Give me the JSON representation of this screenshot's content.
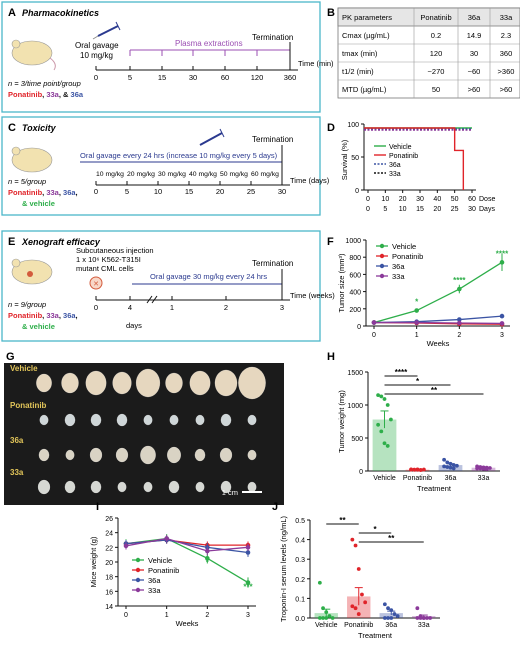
{
  "colors": {
    "box_border": "#4bb6c9",
    "vehicle": "#2eae4a",
    "ponatinib": "#e0242a",
    "c36a": "#3b54a4",
    "c33a": "#8b3a9a",
    "mouse": "#f2e2b0",
    "purple_line": "#9b4fb3",
    "navy_line": "#2b3a8f",
    "pill": "#e63a8c"
  },
  "panelA": {
    "letter": "A",
    "title": "Pharmacokinetics",
    "gavage": "Oral gavage",
    "dose": "10 mg/kg",
    "plasma": "Plasma extractions",
    "termination": "Termination",
    "axis_label": "Time (min)",
    "ticks": [
      "0",
      "5",
      "15",
      "30",
      "60",
      "120",
      "360"
    ],
    "n_text": "n = 3/time point/group",
    "groups": [
      {
        "text": "Ponatinib",
        "color": "#e0242a"
      },
      {
        "text": ", ",
        "color": "#111"
      },
      {
        "text": "33a",
        "color": "#8b3a9a"
      },
      {
        "text": ", & ",
        "color": "#111"
      },
      {
        "text": "36a",
        "color": "#3b54a4"
      }
    ]
  },
  "panelB": {
    "letter": "B",
    "headers": [
      "PK parameters",
      "Ponatinib",
      "36a",
      "33a"
    ],
    "rows": [
      [
        "Cmax (µg/mL)",
        "0.2",
        "14.9",
        "2.3"
      ],
      [
        "tmax (min)",
        "120",
        "30",
        "360"
      ],
      [
        "t1/2 (min)",
        "~270",
        "~60",
        ">360"
      ],
      [
        "MTD (µg/mL)",
        "50",
        ">60",
        ">60"
      ]
    ]
  },
  "panelC": {
    "letter": "C",
    "title": "Toxicity",
    "gavage": "Oral gavage every 24 hrs (increase 10 mg/kg every 5 days)",
    "termination": "Termination",
    "axis_label": "Time (days)",
    "doses": [
      "10 mg/kg",
      "20 mg/kg",
      "30 mg/kg",
      "40 mg/kg",
      "50 mg/kg",
      "60 mg/kg"
    ],
    "ticks": [
      "0",
      "5",
      "10",
      "15",
      "20",
      "25",
      "30"
    ],
    "n_text": "n = 5/group",
    "groups": [
      {
        "text": "Ponatinib",
        "color": "#e0242a"
      },
      {
        "text": ", ",
        "color": "#111"
      },
      {
        "text": "33a",
        "color": "#8b3a9a"
      },
      {
        "text": ", ",
        "color": "#111"
      },
      {
        "text": "36a",
        "color": "#3b54a4"
      },
      {
        "text": ",",
        "color": "#111"
      }
    ],
    "vehicle": "& vehicle"
  },
  "panelD": {
    "letter": "D",
    "ylabel": "Survival (%)",
    "yticks": [
      "0",
      "50",
      "100"
    ],
    "dose_label": "Dose",
    "days_label": "Days",
    "dose_ticks": [
      "0",
      "10",
      "20",
      "30",
      "40",
      "50",
      "60"
    ],
    "day_ticks": [
      "0",
      "5",
      "10",
      "15",
      "20",
      "25",
      "30"
    ],
    "legend": [
      {
        "name": "Vehicle",
        "color": "#2eae4a",
        "dash": false
      },
      {
        "name": "Ponatinib",
        "color": "#e0242a",
        "dash": false
      },
      {
        "name": "36a",
        "color": "#3b54a4",
        "dash": true
      },
      {
        "name": "33a",
        "color": "#111",
        "dash": true
      }
    ]
  },
  "panelE": {
    "letter": "E",
    "title": "Xenograft efficacy",
    "injection": "Subcutaneous injection",
    "cells1": "1 x 10⁶ K562-T315I",
    "cells2": "mutant CML cells",
    "gavage": "Oral gavage 30 mg/kg every 24 hrs",
    "termination": "Termination",
    "axis_label": "Time (weeks)",
    "days_label": "days",
    "ticks": [
      "0",
      "4",
      "1",
      "2",
      "3"
    ],
    "n_text": "n = 9/group",
    "groups": [
      {
        "text": "Ponatinib",
        "color": "#e0242a"
      },
      {
        "text": ", ",
        "color": "#111"
      },
      {
        "text": "33a",
        "color": "#8b3a9a"
      },
      {
        "text": ", ",
        "color": "#111"
      },
      {
        "text": "36a",
        "color": "#3b54a4"
      },
      {
        "text": ",",
        "color": "#111"
      }
    ],
    "vehicle": "& vehicle"
  },
  "panelF": {
    "letter": "F",
    "chart_data": {
      "type": "line",
      "xlabel": "Weeks",
      "ylabel": "Tumor size (mm³)",
      "x": [
        0,
        1,
        2,
        3
      ],
      "ylim": [
        0,
        1000
      ],
      "yticks": [
        0,
        200,
        400,
        600,
        800,
        1000
      ],
      "series": [
        {
          "name": "Vehicle",
          "color": "#2eae4a",
          "values": [
            40,
            180,
            430,
            740
          ],
          "err": [
            5,
            20,
            50,
            100
          ]
        },
        {
          "name": "Ponatinib",
          "color": "#e0242a",
          "values": [
            40,
            35,
            25,
            20
          ],
          "err": [
            5,
            5,
            5,
            5
          ]
        },
        {
          "name": "36a",
          "color": "#3b54a4",
          "values": [
            40,
            50,
            75,
            115
          ],
          "err": [
            5,
            8,
            12,
            25
          ]
        },
        {
          "name": "33a",
          "color": "#8b3a9a",
          "values": [
            40,
            40,
            35,
            30
          ],
          "err": [
            5,
            5,
            5,
            5
          ]
        }
      ],
      "annotations": [
        {
          "x": 1,
          "y": 180,
          "text": "*"
        },
        {
          "x": 2,
          "y": 430,
          "text": "****"
        },
        {
          "x": 3,
          "y": 740,
          "text": "****"
        }
      ]
    }
  },
  "panelG": {
    "letter": "G",
    "rows": [
      {
        "label": "Vehicle",
        "count": 9
      },
      {
        "label": "Ponatinib",
        "count": 9
      },
      {
        "label": "36a",
        "count": 9
      },
      {
        "label": "33a",
        "count": 9
      }
    ],
    "scale": "1 cm"
  },
  "panelH": {
    "letter": "H",
    "chart_data": {
      "type": "bar",
      "xlabel": "Treatment",
      "ylabel": "Tumor weight (mg)",
      "categories": [
        "Vehicle",
        "Ponatinib",
        "36a",
        "33a"
      ],
      "values": [
        780,
        20,
        90,
        50
      ],
      "err": [
        130,
        5,
        20,
        10
      ],
      "colors": [
        "#2eae4a",
        "#e0242a",
        "#3b54a4",
        "#8b3a9a"
      ],
      "ylim": [
        0,
        1500
      ],
      "yticks": [
        0,
        500,
        1000,
        1500
      ],
      "points": [
        [
          1150,
          1130,
          1090,
          1000,
          780,
          700,
          600,
          420,
          380
        ],
        [
          25,
          20,
          18,
          15,
          22,
          20,
          18,
          25,
          15
        ],
        [
          170,
          130,
          110,
          90,
          80,
          70,
          60,
          50,
          40
        ],
        [
          70,
          60,
          55,
          50,
          45,
          40,
          40,
          35,
          30
        ]
      ],
      "sig": [
        {
          "from": 0,
          "to": 1,
          "text": "****"
        },
        {
          "from": 0,
          "to": 2,
          "text": "*"
        },
        {
          "from": 0,
          "to": 3,
          "text": "**"
        }
      ]
    }
  },
  "panelI": {
    "letter": "I",
    "chart_data": {
      "type": "line",
      "xlabel": "Weeks",
      "ylabel": "Mice weight (g)",
      "x": [
        0,
        1,
        2,
        3
      ],
      "ylim": [
        14,
        26
      ],
      "yticks": [
        14,
        16,
        18,
        20,
        22,
        24,
        26
      ],
      "series": [
        {
          "name": "Vehicle",
          "color": "#2eae4a",
          "values": [
            22.5,
            23.2,
            20.5,
            17.2
          ],
          "err": [
            0.6,
            0.6,
            0.7,
            0.7
          ]
        },
        {
          "name": "Ponatinib",
          "color": "#e0242a",
          "values": [
            22.5,
            23.0,
            22.3,
            22.3
          ],
          "err": [
            0.5,
            0.5,
            0.5,
            0.5
          ]
        },
        {
          "name": "36a",
          "color": "#3b54a4",
          "values": [
            22.5,
            23.0,
            22.0,
            21.3
          ],
          "err": [
            0.5,
            0.5,
            0.6,
            0.6
          ]
        },
        {
          "name": "33a",
          "color": "#8b3a9a",
          "values": [
            22.2,
            23.2,
            21.5,
            22.0
          ],
          "err": [
            0.5,
            0.5,
            0.6,
            0.5
          ]
        }
      ],
      "annotations": [
        {
          "x": 2,
          "y": 18.8,
          "text": "*"
        },
        {
          "x": 3,
          "y": 15.4,
          "text": "***"
        }
      ]
    }
  },
  "panelJ": {
    "letter": "J",
    "chart_data": {
      "type": "bar",
      "xlabel": "Treatment",
      "ylabel": "Troponin-I serum levels (ng/mL)",
      "categories": [
        "Vehicle",
        "Ponatinib",
        "36a",
        "33a"
      ],
      "values": [
        0.025,
        0.11,
        0.025,
        0.01
      ],
      "err": [
        0.02,
        0.045,
        0.01,
        0.005
      ],
      "colors": [
        "#2eae4a",
        "#e0242a",
        "#3b54a4",
        "#8b3a9a"
      ],
      "ylim": [
        0,
        0.5
      ],
      "yticks": [
        0.0,
        0.1,
        0.2,
        0.3,
        0.4,
        0.5
      ],
      "points": [
        [
          0.18,
          0.05,
          0.03,
          0.01,
          0.0,
          0.0,
          0.0,
          0.0
        ],
        [
          0.4,
          0.37,
          0.25,
          0.12,
          0.08,
          0.06,
          0.05,
          0.02
        ],
        [
          0.07,
          0.05,
          0.04,
          0.02,
          0.01,
          0.0,
          0.0,
          0.0
        ],
        [
          0.05,
          0.01,
          0.0,
          0.0,
          0.0,
          0.0,
          0.0,
          0.0
        ]
      ],
      "sig": [
        {
          "from": 0,
          "to": 1,
          "text": "**"
        },
        {
          "from": 1,
          "to": 2,
          "text": "*"
        },
        {
          "from": 1,
          "to": 3,
          "text": "**"
        }
      ]
    }
  }
}
